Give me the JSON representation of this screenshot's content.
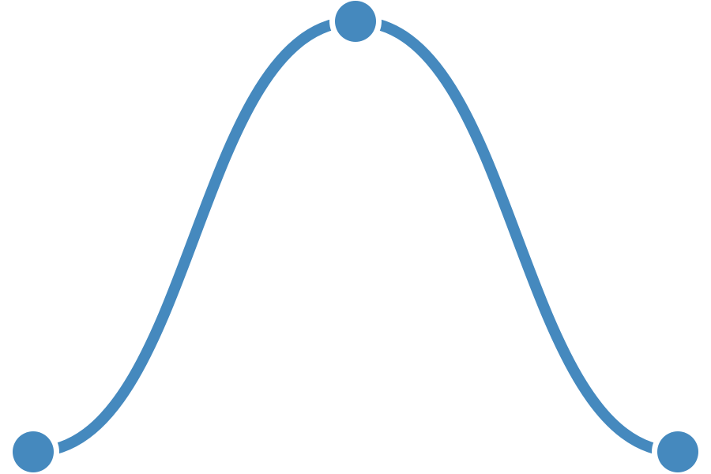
{
  "chart_data": {
    "type": "line",
    "x": [
      0,
      1,
      2
    ],
    "y": [
      0,
      1,
      0
    ],
    "curve": "smooth",
    "xlim": [
      0,
      2
    ],
    "ylim": [
      0,
      1
    ],
    "grid": false,
    "legend": "none",
    "title": "",
    "xlabel": "",
    "ylabel": ""
  },
  "colors": {
    "series": "#4589be",
    "background": "#ffffff"
  }
}
